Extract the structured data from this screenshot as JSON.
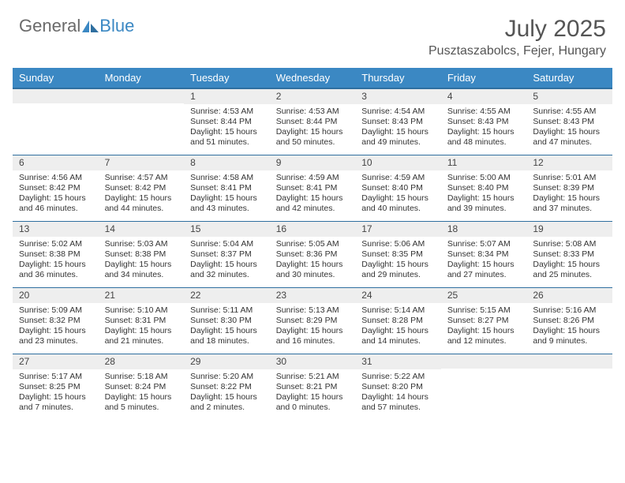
{
  "brand": {
    "general": "General",
    "blue": "Blue"
  },
  "title": "July 2025",
  "location": "Pusztaszabolcs, Fejer, Hungary",
  "colors": {
    "header_bg": "#3b88c3",
    "header_border": "#2f6fa0",
    "daynum_bg": "#eeeeee",
    "text": "#333333",
    "title_text": "#555555"
  },
  "day_headers": [
    "Sunday",
    "Monday",
    "Tuesday",
    "Wednesday",
    "Thursday",
    "Friday",
    "Saturday"
  ],
  "weeks": [
    [
      null,
      null,
      {
        "n": "1",
        "sr": "Sunrise: 4:53 AM",
        "ss": "Sunset: 8:44 PM",
        "d1": "Daylight: 15 hours",
        "d2": "and 51 minutes."
      },
      {
        "n": "2",
        "sr": "Sunrise: 4:53 AM",
        "ss": "Sunset: 8:44 PM",
        "d1": "Daylight: 15 hours",
        "d2": "and 50 minutes."
      },
      {
        "n": "3",
        "sr": "Sunrise: 4:54 AM",
        "ss": "Sunset: 8:43 PM",
        "d1": "Daylight: 15 hours",
        "d2": "and 49 minutes."
      },
      {
        "n": "4",
        "sr": "Sunrise: 4:55 AM",
        "ss": "Sunset: 8:43 PM",
        "d1": "Daylight: 15 hours",
        "d2": "and 48 minutes."
      },
      {
        "n": "5",
        "sr": "Sunrise: 4:55 AM",
        "ss": "Sunset: 8:43 PM",
        "d1": "Daylight: 15 hours",
        "d2": "and 47 minutes."
      }
    ],
    [
      {
        "n": "6",
        "sr": "Sunrise: 4:56 AM",
        "ss": "Sunset: 8:42 PM",
        "d1": "Daylight: 15 hours",
        "d2": "and 46 minutes."
      },
      {
        "n": "7",
        "sr": "Sunrise: 4:57 AM",
        "ss": "Sunset: 8:42 PM",
        "d1": "Daylight: 15 hours",
        "d2": "and 44 minutes."
      },
      {
        "n": "8",
        "sr": "Sunrise: 4:58 AM",
        "ss": "Sunset: 8:41 PM",
        "d1": "Daylight: 15 hours",
        "d2": "and 43 minutes."
      },
      {
        "n": "9",
        "sr": "Sunrise: 4:59 AM",
        "ss": "Sunset: 8:41 PM",
        "d1": "Daylight: 15 hours",
        "d2": "and 42 minutes."
      },
      {
        "n": "10",
        "sr": "Sunrise: 4:59 AM",
        "ss": "Sunset: 8:40 PM",
        "d1": "Daylight: 15 hours",
        "d2": "and 40 minutes."
      },
      {
        "n": "11",
        "sr": "Sunrise: 5:00 AM",
        "ss": "Sunset: 8:40 PM",
        "d1": "Daylight: 15 hours",
        "d2": "and 39 minutes."
      },
      {
        "n": "12",
        "sr": "Sunrise: 5:01 AM",
        "ss": "Sunset: 8:39 PM",
        "d1": "Daylight: 15 hours",
        "d2": "and 37 minutes."
      }
    ],
    [
      {
        "n": "13",
        "sr": "Sunrise: 5:02 AM",
        "ss": "Sunset: 8:38 PM",
        "d1": "Daylight: 15 hours",
        "d2": "and 36 minutes."
      },
      {
        "n": "14",
        "sr": "Sunrise: 5:03 AM",
        "ss": "Sunset: 8:38 PM",
        "d1": "Daylight: 15 hours",
        "d2": "and 34 minutes."
      },
      {
        "n": "15",
        "sr": "Sunrise: 5:04 AM",
        "ss": "Sunset: 8:37 PM",
        "d1": "Daylight: 15 hours",
        "d2": "and 32 minutes."
      },
      {
        "n": "16",
        "sr": "Sunrise: 5:05 AM",
        "ss": "Sunset: 8:36 PM",
        "d1": "Daylight: 15 hours",
        "d2": "and 30 minutes."
      },
      {
        "n": "17",
        "sr": "Sunrise: 5:06 AM",
        "ss": "Sunset: 8:35 PM",
        "d1": "Daylight: 15 hours",
        "d2": "and 29 minutes."
      },
      {
        "n": "18",
        "sr": "Sunrise: 5:07 AM",
        "ss": "Sunset: 8:34 PM",
        "d1": "Daylight: 15 hours",
        "d2": "and 27 minutes."
      },
      {
        "n": "19",
        "sr": "Sunrise: 5:08 AM",
        "ss": "Sunset: 8:33 PM",
        "d1": "Daylight: 15 hours",
        "d2": "and 25 minutes."
      }
    ],
    [
      {
        "n": "20",
        "sr": "Sunrise: 5:09 AM",
        "ss": "Sunset: 8:32 PM",
        "d1": "Daylight: 15 hours",
        "d2": "and 23 minutes."
      },
      {
        "n": "21",
        "sr": "Sunrise: 5:10 AM",
        "ss": "Sunset: 8:31 PM",
        "d1": "Daylight: 15 hours",
        "d2": "and 21 minutes."
      },
      {
        "n": "22",
        "sr": "Sunrise: 5:11 AM",
        "ss": "Sunset: 8:30 PM",
        "d1": "Daylight: 15 hours",
        "d2": "and 18 minutes."
      },
      {
        "n": "23",
        "sr": "Sunrise: 5:13 AM",
        "ss": "Sunset: 8:29 PM",
        "d1": "Daylight: 15 hours",
        "d2": "and 16 minutes."
      },
      {
        "n": "24",
        "sr": "Sunrise: 5:14 AM",
        "ss": "Sunset: 8:28 PM",
        "d1": "Daylight: 15 hours",
        "d2": "and 14 minutes."
      },
      {
        "n": "25",
        "sr": "Sunrise: 5:15 AM",
        "ss": "Sunset: 8:27 PM",
        "d1": "Daylight: 15 hours",
        "d2": "and 12 minutes."
      },
      {
        "n": "26",
        "sr": "Sunrise: 5:16 AM",
        "ss": "Sunset: 8:26 PM",
        "d1": "Daylight: 15 hours",
        "d2": "and 9 minutes."
      }
    ],
    [
      {
        "n": "27",
        "sr": "Sunrise: 5:17 AM",
        "ss": "Sunset: 8:25 PM",
        "d1": "Daylight: 15 hours",
        "d2": "and 7 minutes."
      },
      {
        "n": "28",
        "sr": "Sunrise: 5:18 AM",
        "ss": "Sunset: 8:24 PM",
        "d1": "Daylight: 15 hours",
        "d2": "and 5 minutes."
      },
      {
        "n": "29",
        "sr": "Sunrise: 5:20 AM",
        "ss": "Sunset: 8:22 PM",
        "d1": "Daylight: 15 hours",
        "d2": "and 2 minutes."
      },
      {
        "n": "30",
        "sr": "Sunrise: 5:21 AM",
        "ss": "Sunset: 8:21 PM",
        "d1": "Daylight: 15 hours",
        "d2": "and 0 minutes."
      },
      {
        "n": "31",
        "sr": "Sunrise: 5:22 AM",
        "ss": "Sunset: 8:20 PM",
        "d1": "Daylight: 14 hours",
        "d2": "and 57 minutes."
      },
      null,
      null
    ]
  ]
}
